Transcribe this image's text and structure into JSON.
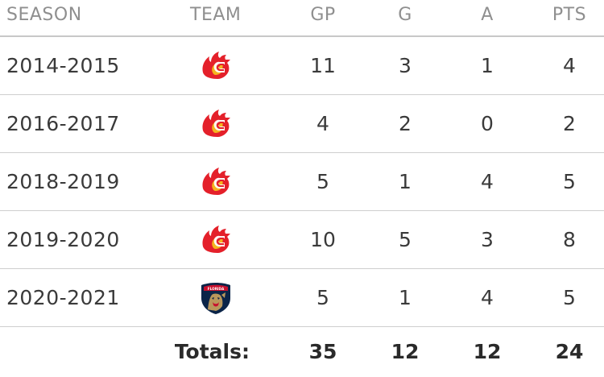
{
  "headers": {
    "season": "SEASON",
    "team": "TEAM",
    "gp": "GP",
    "g": "G",
    "a": "A",
    "pts": "PTS"
  },
  "rows": [
    {
      "season": "2014-2015",
      "team_icon": "calgary-flames-logo",
      "gp": "11",
      "g": "3",
      "a": "1",
      "pts": "4"
    },
    {
      "season": "2016-2017",
      "team_icon": "calgary-flames-logo",
      "gp": "4",
      "g": "2",
      "a": "0",
      "pts": "2"
    },
    {
      "season": "2018-2019",
      "team_icon": "calgary-flames-logo",
      "gp": "5",
      "g": "1",
      "a": "4",
      "pts": "5"
    },
    {
      "season": "2019-2020",
      "team_icon": "calgary-flames-logo",
      "gp": "10",
      "g": "5",
      "a": "3",
      "pts": "8"
    },
    {
      "season": "2020-2021",
      "team_icon": "florida-panthers-logo",
      "gp": "5",
      "g": "1",
      "a": "4",
      "pts": "5"
    }
  ],
  "totals": {
    "label": "Totals:",
    "gp": "35",
    "g": "12",
    "a": "12",
    "pts": "24"
  },
  "colors": {
    "flames_red": "#e4202a",
    "flames_yellow": "#f5b31e",
    "panthers_navy": "#0b2448",
    "panthers_red": "#c8102e",
    "panthers_gold": "#b9975b"
  }
}
